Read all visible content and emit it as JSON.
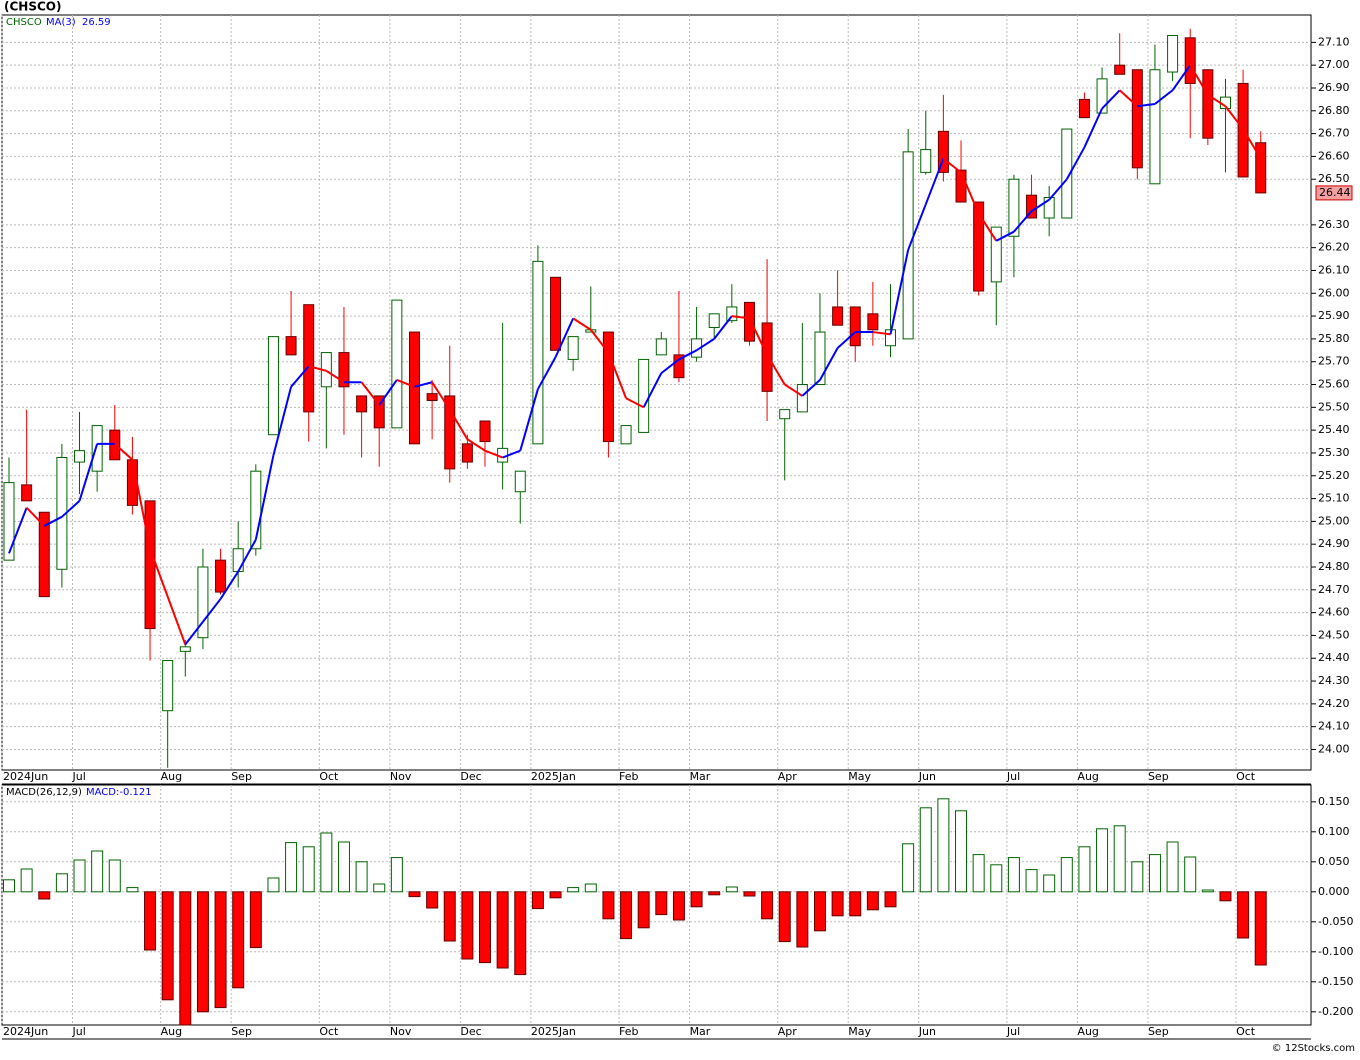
{
  "chart_data": [
    {
      "type": "candlestick",
      "title": "(CHSCO)",
      "symbol": "CHSCO",
      "ma_name": "MA(3)",
      "categories": [
        "2024Jun",
        null,
        null,
        null,
        "Jul",
        null,
        null,
        null,
        null,
        "Aug",
        null,
        null,
        null,
        "Sep",
        null,
        null,
        null,
        null,
        "Oct",
        null,
        null,
        null,
        "Nov",
        null,
        null,
        null,
        "Dec",
        null,
        null,
        null,
        "2025Jan",
        null,
        null,
        null,
        null,
        "Feb",
        null,
        null,
        null,
        "Mar",
        null,
        null,
        null,
        null,
        "Apr",
        null,
        null,
        null,
        "May",
        null,
        null,
        null,
        "Jun",
        null,
        null,
        null,
        null,
        "Jul",
        null,
        null,
        null,
        "Aug",
        null,
        null,
        null,
        "Sep",
        null,
        null,
        null,
        null,
        "Oct",
        null
      ],
      "open": [
        24.83,
        25.16,
        25.04,
        24.79,
        25.26,
        25.22,
        25.4,
        25.27,
        25.09,
        24.17,
        24.43,
        24.49,
        24.83,
        24.78,
        24.88,
        25.38,
        25.81,
        25.95,
        25.59,
        25.74,
        25.55,
        25.55,
        25.41,
        25.83,
        25.56,
        25.55,
        25.34,
        25.44,
        25.26,
        25.13,
        25.34,
        26.07,
        25.71,
        25.83,
        25.83,
        25.34,
        25.39,
        25.73,
        25.73,
        25.72,
        25.85,
        25.88,
        25.96,
        25.87,
        25.45,
        25.48,
        25.6,
        25.94,
        25.94,
        25.91,
        25.77,
        25.8,
        26.53,
        26.71,
        26.54,
        26.4,
        26.05,
        26.25,
        26.43,
        26.33,
        26.33,
        26.85,
        26.79,
        27.0,
        26.98,
        26.48,
        26.97,
        27.12,
        26.98,
        26.81,
        26.92,
        26.66
      ],
      "high": [
        25.28,
        25.49,
        25.04,
        25.34,
        25.48,
        25.42,
        25.51,
        25.37,
        25.09,
        24.39,
        24.48,
        24.88,
        24.88,
        25.0,
        25.25,
        25.81,
        26.01,
        25.95,
        25.74,
        25.94,
        25.55,
        25.55,
        25.97,
        25.83,
        25.62,
        25.77,
        25.38,
        25.44,
        25.87,
        25.22,
        26.21,
        26.07,
        25.81,
        26.03,
        25.83,
        25.42,
        25.71,
        25.83,
        26.01,
        25.94,
        25.91,
        26.04,
        25.96,
        26.15,
        25.49,
        25.87,
        26.0,
        26.1,
        25.94,
        26.05,
        26.04,
        26.72,
        26.8,
        26.87,
        26.67,
        26.4,
        26.29,
        26.52,
        26.52,
        26.47,
        26.72,
        26.88,
        26.99,
        27.14,
        26.98,
        27.09,
        27.13,
        27.16,
        26.98,
        26.94,
        26.98,
        26.71
      ],
      "low": [
        24.83,
        25.09,
        24.67,
        24.71,
        25.12,
        25.13,
        25.27,
        25.03,
        24.39,
        23.92,
        24.32,
        24.44,
        24.68,
        24.71,
        24.85,
        25.38,
        25.73,
        25.35,
        25.32,
        25.38,
        25.28,
        25.24,
        25.41,
        25.34,
        25.36,
        25.17,
        25.23,
        25.24,
        25.14,
        24.99,
        25.34,
        25.75,
        25.66,
        25.83,
        25.28,
        25.34,
        25.39,
        25.73,
        25.61,
        25.7,
        25.8,
        25.87,
        25.77,
        25.44,
        25.18,
        25.48,
        25.6,
        25.86,
        25.7,
        25.77,
        25.72,
        25.8,
        26.52,
        26.49,
        26.4,
        25.99,
        25.86,
        26.07,
        26.33,
        26.25,
        26.33,
        26.77,
        26.79,
        26.96,
        26.5,
        26.48,
        26.93,
        26.68,
        26.65,
        26.53,
        26.51,
        26.44
      ],
      "close": [
        25.17,
        25.09,
        24.67,
        25.28,
        25.31,
        25.42,
        25.27,
        25.07,
        24.53,
        24.39,
        24.45,
        24.8,
        24.69,
        24.88,
        25.22,
        25.81,
        25.73,
        25.48,
        25.74,
        25.59,
        25.48,
        25.41,
        25.97,
        25.34,
        25.53,
        25.23,
        25.26,
        25.35,
        25.32,
        25.22,
        26.14,
        25.75,
        25.81,
        25.84,
        25.35,
        25.42,
        25.71,
        25.8,
        25.63,
        25.8,
        25.91,
        25.94,
        25.79,
        25.57,
        25.49,
        25.6,
        25.83,
        25.86,
        25.77,
        25.84,
        25.84,
        26.62,
        26.63,
        26.53,
        26.4,
        26.01,
        26.29,
        26.5,
        26.33,
        26.42,
        26.72,
        26.77,
        26.94,
        26.96,
        26.55,
        26.98,
        27.13,
        26.92,
        26.68,
        26.86,
        26.51,
        26.44
      ],
      "ma": [
        24.86,
        25.06,
        24.98,
        25.02,
        25.09,
        25.34,
        25.34,
        25.27,
        24.88,
        24.67,
        24.46,
        24.56,
        24.66,
        24.78,
        24.92,
        25.29,
        25.59,
        25.68,
        25.66,
        25.61,
        25.61,
        25.51,
        25.62,
        25.59,
        25.61,
        25.49,
        25.36,
        25.31,
        25.28,
        25.31,
        25.58,
        25.72,
        25.89,
        25.84,
        25.74,
        25.54,
        25.5,
        25.65,
        25.71,
        25.75,
        25.8,
        25.9,
        25.89,
        25.73,
        25.6,
        25.55,
        25.62,
        25.76,
        25.83,
        25.83,
        25.82,
        26.19,
        26.39,
        26.59,
        26.53,
        26.35,
        26.23,
        26.27,
        26.36,
        26.41,
        26.5,
        26.64,
        26.81,
        26.89,
        26.82,
        26.83,
        26.89,
        27.0,
        26.87,
        26.82,
        26.72,
        26.59
      ],
      "up_color": "#006400",
      "down_color": "#ff0000",
      "ma_up_color": "#0000ff",
      "ma_down_color": "#ff0000",
      "ylim": [
        23.91,
        27.22
      ],
      "yticks": [
        {
          "value": 24.0,
          "label": "24.00"
        },
        {
          "value": 24.1,
          "label": "24.10"
        },
        {
          "value": 24.2,
          "label": "24.20"
        },
        {
          "value": 24.3,
          "label": "24.30"
        },
        {
          "value": 24.4,
          "label": "24.40"
        },
        {
          "value": 24.5,
          "label": "24.50"
        },
        {
          "value": 24.6,
          "label": "24.60"
        },
        {
          "value": 24.7,
          "label": "24.70"
        },
        {
          "value": 24.8,
          "label": "24.80"
        },
        {
          "value": 24.9,
          "label": "24.90"
        },
        {
          "value": 25.0,
          "label": "25.00"
        },
        {
          "value": 25.1,
          "label": "25.10"
        },
        {
          "value": 25.2,
          "label": "25.20"
        },
        {
          "value": 25.3,
          "label": "25.30"
        },
        {
          "value": 25.4,
          "label": "25.40"
        },
        {
          "value": 25.5,
          "label": "25.50"
        },
        {
          "value": 25.6,
          "label": "25.60"
        },
        {
          "value": 25.7,
          "label": "25.70"
        },
        {
          "value": 25.8,
          "label": "25.80"
        },
        {
          "value": 25.9,
          "label": "25.90"
        },
        {
          "value": 26.0,
          "label": "26.00"
        },
        {
          "value": 26.1,
          "label": "26.10"
        },
        {
          "value": 26.2,
          "label": "26.20"
        },
        {
          "value": 26.3,
          "label": "26.30"
        },
        {
          "value": 26.5,
          "label": "26.50"
        },
        {
          "value": 26.6,
          "label": "26.60"
        },
        {
          "value": 26.7,
          "label": "26.70"
        },
        {
          "value": 26.8,
          "label": "26.80"
        },
        {
          "value": 26.9,
          "label": "26.90"
        },
        {
          "value": 27.0,
          "label": "27.00"
        },
        {
          "value": 27.1,
          "label": "27.10"
        }
      ],
      "grid": true
    },
    {
      "type": "bar",
      "title": "MACD(26,12,9)",
      "macd_label": "MACD:-0.121",
      "values": [
        0.02,
        0.038,
        -0.012,
        0.03,
        0.053,
        0.068,
        0.053,
        0.007,
        -0.097,
        -0.18,
        -0.222,
        -0.2,
        -0.193,
        -0.16,
        -0.093,
        0.023,
        0.082,
        0.075,
        0.098,
        0.083,
        0.05,
        0.013,
        0.057,
        -0.008,
        -0.027,
        -0.082,
        -0.112,
        -0.118,
        -0.127,
        -0.138,
        -0.028,
        -0.01,
        0.007,
        0.013,
        -0.045,
        -0.078,
        -0.06,
        -0.038,
        -0.047,
        -0.025,
        -0.005,
        0.008,
        -0.007,
        -0.045,
        -0.083,
        -0.092,
        -0.065,
        -0.04,
        -0.04,
        -0.03,
        -0.025,
        0.08,
        0.14,
        0.155,
        0.135,
        0.062,
        0.045,
        0.057,
        0.037,
        0.028,
        0.057,
        0.075,
        0.105,
        0.11,
        0.05,
        0.062,
        0.083,
        0.058,
        0.003,
        -0.015,
        -0.077,
        -0.122
      ],
      "up_color": "#006400",
      "down_color": "#ff0000",
      "ylim": [
        -0.222,
        0.178
      ],
      "yticks": [
        {
          "value": -0.2,
          "label": "-0.200"
        },
        {
          "value": -0.15,
          "label": "-0.150"
        },
        {
          "value": -0.1,
          "label": "-0.100"
        },
        {
          "value": -0.05,
          "label": "-0.050"
        },
        {
          "value": 0,
          "label": "0.000"
        },
        {
          "value": 0.05,
          "label": "0.050"
        },
        {
          "value": 0.1,
          "label": "0.100"
        },
        {
          "value": 0.15,
          "label": "0.150"
        }
      ],
      "grid": true
    }
  ],
  "footer": "© 12Stocks.com"
}
